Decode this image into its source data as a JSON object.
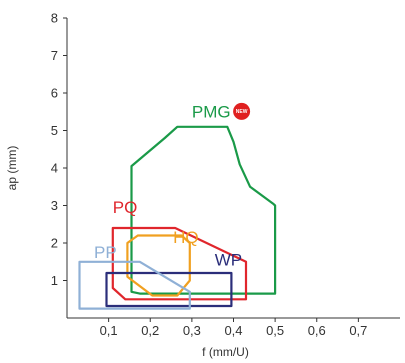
{
  "chart_data": {
    "type": "area",
    "title": "",
    "xlabel": "f (mm/U)",
    "ylabel": "ap (mm)",
    "xlim": [
      0,
      0.8
    ],
    "ylim": [
      0,
      8
    ],
    "x_ticks": [
      "0,1",
      "0,2",
      "0,3",
      "0,4",
      "0,5",
      "0,6",
      "0,7"
    ],
    "y_ticks": [
      "1",
      "2",
      "3",
      "4",
      "5",
      "6",
      "7",
      "8"
    ],
    "grid": false,
    "series": [
      {
        "name": "PMG",
        "color": "#1a9a48",
        "badge": "NEW",
        "badge_color": "#e02020",
        "outline": [
          [
            0.155,
            4.0
          ],
          [
            0.155,
            0.7
          ],
          [
            0.175,
            0.65
          ],
          [
            0.5,
            0.65
          ],
          [
            0.5,
            3.0
          ],
          [
            0.495,
            3.05
          ],
          [
            0.44,
            3.5
          ],
          [
            0.415,
            4.1
          ],
          [
            0.4,
            4.7
          ],
          [
            0.385,
            5.1
          ],
          [
            0.265,
            5.1
          ],
          [
            0.235,
            4.8
          ],
          [
            0.155,
            4.05
          ]
        ],
        "label_pos": [
          0.3,
          5.35
        ]
      },
      {
        "name": "PQ",
        "color": "#e0262c",
        "outline": [
          [
            0.11,
            2.4
          ],
          [
            0.26,
            2.4
          ],
          [
            0.43,
            1.5
          ],
          [
            0.43,
            0.5
          ],
          [
            0.14,
            0.5
          ],
          [
            0.11,
            0.8
          ]
        ],
        "label_pos": [
          0.11,
          2.8
        ]
      },
      {
        "name": "HQ",
        "color": "#f0a020",
        "outline": [
          [
            0.145,
            2.0
          ],
          [
            0.17,
            2.2
          ],
          [
            0.275,
            2.2
          ],
          [
            0.295,
            2.0
          ],
          [
            0.295,
            1.0
          ],
          [
            0.265,
            0.6
          ],
          [
            0.205,
            0.6
          ],
          [
            0.145,
            1.1
          ]
        ],
        "label_pos": [
          0.255,
          2.0
        ]
      },
      {
        "name": "WP",
        "color": "#2b2e7a",
        "outline": [
          [
            0.095,
            1.2
          ],
          [
            0.395,
            1.2
          ],
          [
            0.395,
            0.32
          ],
          [
            0.095,
            0.32
          ]
        ],
        "label_pos": [
          0.355,
          1.4
        ]
      },
      {
        "name": "PP",
        "color": "#8fb0d6",
        "outline": [
          [
            0.03,
            1.5
          ],
          [
            0.175,
            1.5
          ],
          [
            0.295,
            0.7
          ],
          [
            0.295,
            0.25
          ],
          [
            0.03,
            0.25
          ]
        ],
        "label_pos": [
          0.065,
          1.6
        ]
      }
    ]
  }
}
